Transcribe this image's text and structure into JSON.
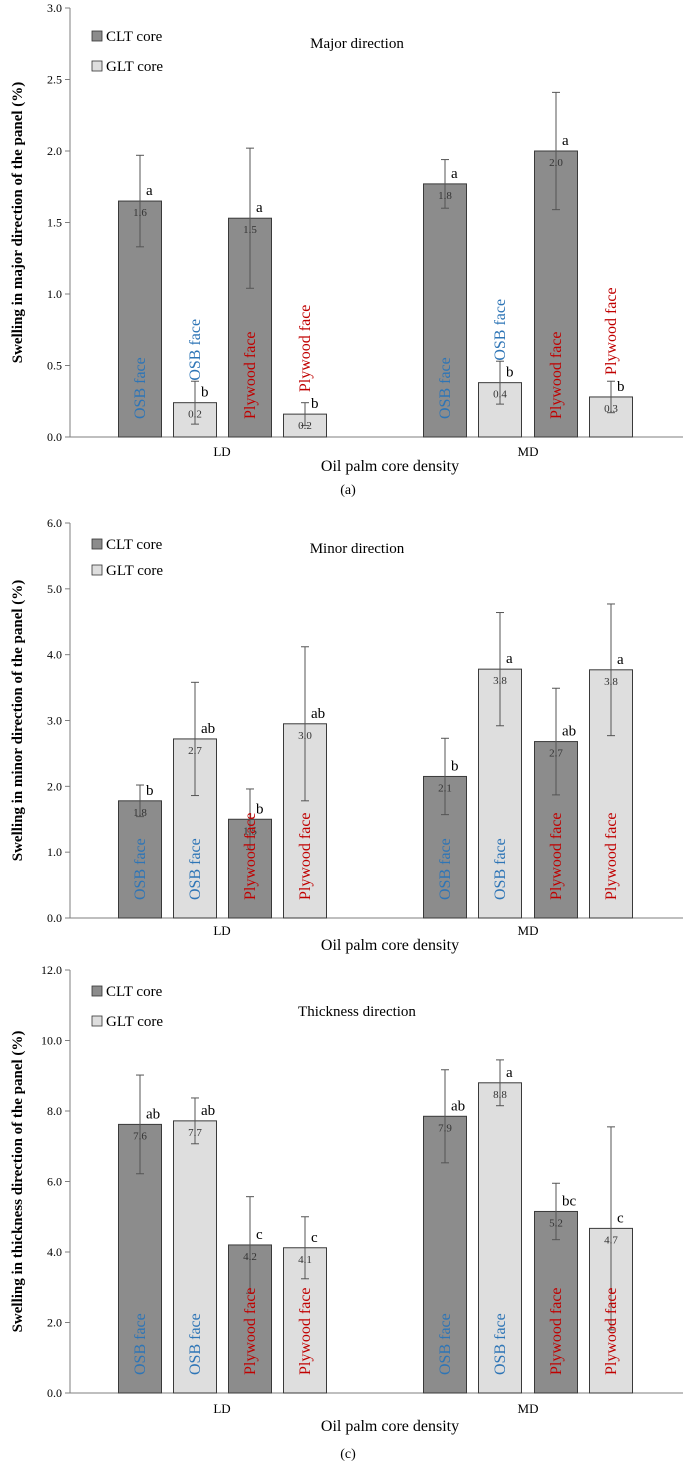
{
  "chart_data": [
    {
      "type": "bar",
      "title": "Major direction",
      "ylabel": "Swelling in major direction of the panel (%)",
      "xlabel": "Oil palm core density",
      "caption": "(a)",
      "ylim": [
        0,
        3
      ],
      "yticks": [
        "0.0",
        "0.5",
        "1.0",
        "1.5",
        "2.0",
        "2.5",
        "3.0"
      ],
      "categories": [
        "LD",
        "MD"
      ],
      "legend": [
        {
          "name": "CLT core",
          "color": "#8c8c8c"
        },
        {
          "name": "GLT core",
          "color": "#dedede"
        }
      ],
      "bars": [
        {
          "group": "LD",
          "core": "CLT core",
          "face": "OSB face",
          "value": 1.65,
          "label": "1.6",
          "err": 0.32,
          "letter": "a"
        },
        {
          "group": "LD",
          "core": "GLT core",
          "face": "OSB face",
          "value": 0.24,
          "label": "0.2",
          "err": 0.15,
          "letter": "b"
        },
        {
          "group": "LD",
          "core": "CLT core",
          "face": "Plywood face",
          "value": 1.53,
          "label": "1.5",
          "err": 0.49,
          "letter": "a"
        },
        {
          "group": "LD",
          "core": "GLT core",
          "face": "Plywood face",
          "value": 0.16,
          "label": "0.2",
          "err": 0.08,
          "letter": "b"
        },
        {
          "group": "MD",
          "core": "CLT core",
          "face": "OSB face",
          "value": 1.77,
          "label": "1.8",
          "err": 0.17,
          "letter": "a"
        },
        {
          "group": "MD",
          "core": "GLT core",
          "face": "OSB face",
          "value": 0.38,
          "label": "0.4",
          "err": 0.15,
          "letter": "b"
        },
        {
          "group": "MD",
          "core": "CLT core",
          "face": "Plywood face",
          "value": 2.0,
          "label": "2.0",
          "err": 0.41,
          "letter": "a"
        },
        {
          "group": "MD",
          "core": "GLT core",
          "face": "Plywood face",
          "value": 0.28,
          "label": "0.3",
          "err": 0.11,
          "letter": "b"
        }
      ]
    },
    {
      "type": "bar",
      "title": "Minor direction",
      "ylabel": "Swelling in minor direction of the panel (%)",
      "xlabel": "Oil palm core density",
      "caption": "(b)",
      "ylim": [
        0,
        6
      ],
      "yticks": [
        "0.0",
        "1.0",
        "2.0",
        "3.0",
        "4.0",
        "5.0",
        "6.0"
      ],
      "categories": [
        "LD",
        "MD"
      ],
      "legend": [
        {
          "name": "CLT core",
          "color": "#8c8c8c"
        },
        {
          "name": "GLT core",
          "color": "#dedede"
        }
      ],
      "bars": [
        {
          "group": "LD",
          "core": "CLT core",
          "face": "OSB face",
          "value": 1.78,
          "label": "1.8",
          "err": 0.24,
          "letter": "b"
        },
        {
          "group": "LD",
          "core": "GLT core",
          "face": "OSB face",
          "value": 2.72,
          "label": "2.7",
          "err": 0.86,
          "letter": "ab"
        },
        {
          "group": "LD",
          "core": "CLT core",
          "face": "Plywood face",
          "value": 1.5,
          "label": "1.5",
          "err": 0.46,
          "letter": "b"
        },
        {
          "group": "LD",
          "core": "GLT core",
          "face": "Plywood face",
          "value": 2.95,
          "label": "3.0",
          "err": 1.17,
          "letter": "ab"
        },
        {
          "group": "MD",
          "core": "CLT core",
          "face": "OSB face",
          "value": 2.15,
          "label": "2.1",
          "err": 0.58,
          "letter": "b"
        },
        {
          "group": "MD",
          "core": "GLT core",
          "face": "OSB face",
          "value": 3.78,
          "label": "3.8",
          "err": 0.86,
          "letter": "a"
        },
        {
          "group": "MD",
          "core": "CLT core",
          "face": "Plywood face",
          "value": 2.68,
          "label": "2.7",
          "err": 0.81,
          "letter": "ab"
        },
        {
          "group": "MD",
          "core": "GLT core",
          "face": "Plywood face",
          "value": 3.77,
          "label": "3.8",
          "err": 1.0,
          "letter": "a"
        }
      ]
    },
    {
      "type": "bar",
      "title": "Thickness direction",
      "ylabel": "Swelling in thickness direction of the panel (%)",
      "xlabel": "Oil palm core density",
      "caption": "(c)",
      "ylim": [
        0,
        12
      ],
      "yticks": [
        "0.0",
        "2.0",
        "4.0",
        "6.0",
        "8.0",
        "10.0",
        "12.0"
      ],
      "categories": [
        "LD",
        "MD"
      ],
      "legend": [
        {
          "name": "CLT core",
          "color": "#8c8c8c"
        },
        {
          "name": "GLT core",
          "color": "#dedede"
        }
      ],
      "bars": [
        {
          "group": "LD",
          "core": "CLT core",
          "face": "OSB face",
          "value": 7.62,
          "label": "7.6",
          "err": 1.4,
          "letter": "ab"
        },
        {
          "group": "LD",
          "core": "GLT core",
          "face": "OSB face",
          "value": 7.72,
          "label": "7.7",
          "err": 0.65,
          "letter": "ab"
        },
        {
          "group": "LD",
          "core": "CLT core",
          "face": "Plywood face",
          "value": 4.2,
          "label": "4.2",
          "err": 1.37,
          "letter": "c"
        },
        {
          "group": "LD",
          "core": "GLT core",
          "face": "Plywood face",
          "value": 4.12,
          "label": "4.1",
          "err": 0.88,
          "letter": "c"
        },
        {
          "group": "MD",
          "core": "CLT core",
          "face": "OSB face",
          "value": 7.85,
          "label": "7.9",
          "err": 1.32,
          "letter": "ab"
        },
        {
          "group": "MD",
          "core": "GLT core",
          "face": "OSB face",
          "value": 8.8,
          "label": "8.8",
          "err": 0.65,
          "letter": "a"
        },
        {
          "group": "MD",
          "core": "CLT core",
          "face": "Plywood face",
          "value": 5.15,
          "label": "5.2",
          "err": 0.8,
          "letter": "bc"
        },
        {
          "group": "MD",
          "core": "GLT core",
          "face": "Plywood face",
          "value": 4.67,
          "label": "4.7",
          "err": 2.88,
          "letter": "c"
        }
      ]
    }
  ],
  "colors": {
    "clt": "#8c8c8c",
    "glt": "#dedede",
    "osb_text": "#2e75b6",
    "plywood_text": "#c00000",
    "axis": "#7f7f7f"
  }
}
